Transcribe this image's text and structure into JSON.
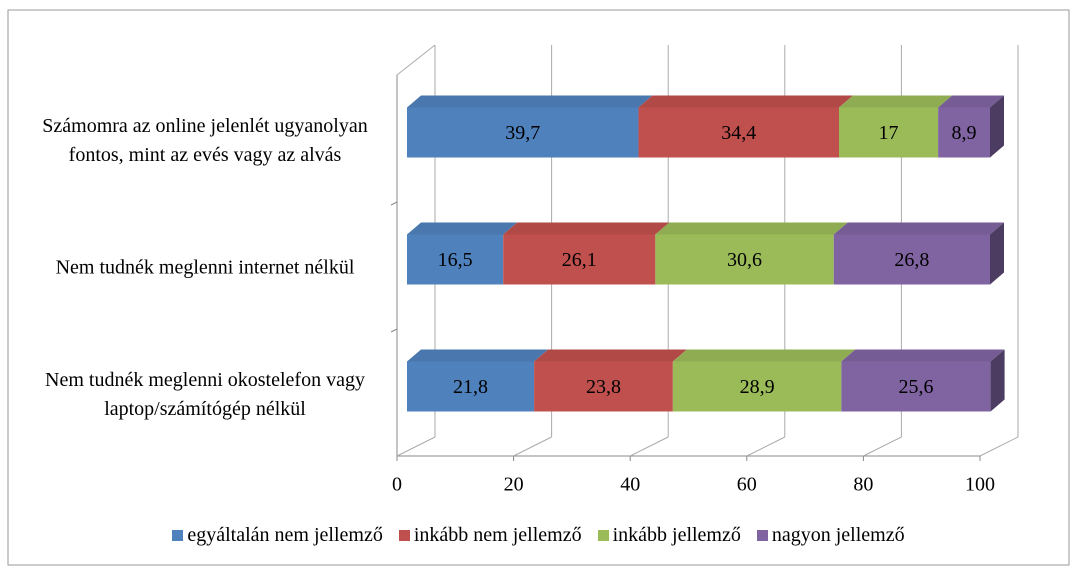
{
  "chart_data": {
    "type": "stacked_bar_3d_horizontal",
    "categories": [
      "Számomra az online jelenlét ugyanolyan fontos, mint az evés vagy az alvás",
      "Nem tudnék meglenni internet nélkül",
      "Nem tudnék meglenni okostelefon vagy laptop/számítógép nélkül"
    ],
    "series": [
      {
        "name": "egyáltalán nem jellemző",
        "color": "#4f81bd",
        "values": [
          39.7,
          16.5,
          21.8
        ],
        "value_labels": [
          "39,7",
          "16,5",
          "21,8"
        ]
      },
      {
        "name": "inkább nem jellemző",
        "color": "#c0504d",
        "values": [
          34.4,
          26.1,
          23.8
        ],
        "value_labels": [
          "34,4",
          "26,1",
          "23,8"
        ]
      },
      {
        "name": "inkább jellemző",
        "color": "#9bbb59",
        "values": [
          17,
          30.6,
          28.9
        ],
        "value_labels": [
          "17",
          "30,6",
          "28,9"
        ]
      },
      {
        "name": "nagyon jellemző",
        "color": "#8064a2",
        "values": [
          8.9,
          26.8,
          25.6
        ],
        "value_labels": [
          "8,9",
          "26,8",
          "25,6"
        ]
      }
    ],
    "xlim": [
      0,
      100
    ],
    "xticks": [
      0,
      20,
      40,
      60,
      80,
      100
    ],
    "grid": true,
    "legend": "bottom"
  }
}
